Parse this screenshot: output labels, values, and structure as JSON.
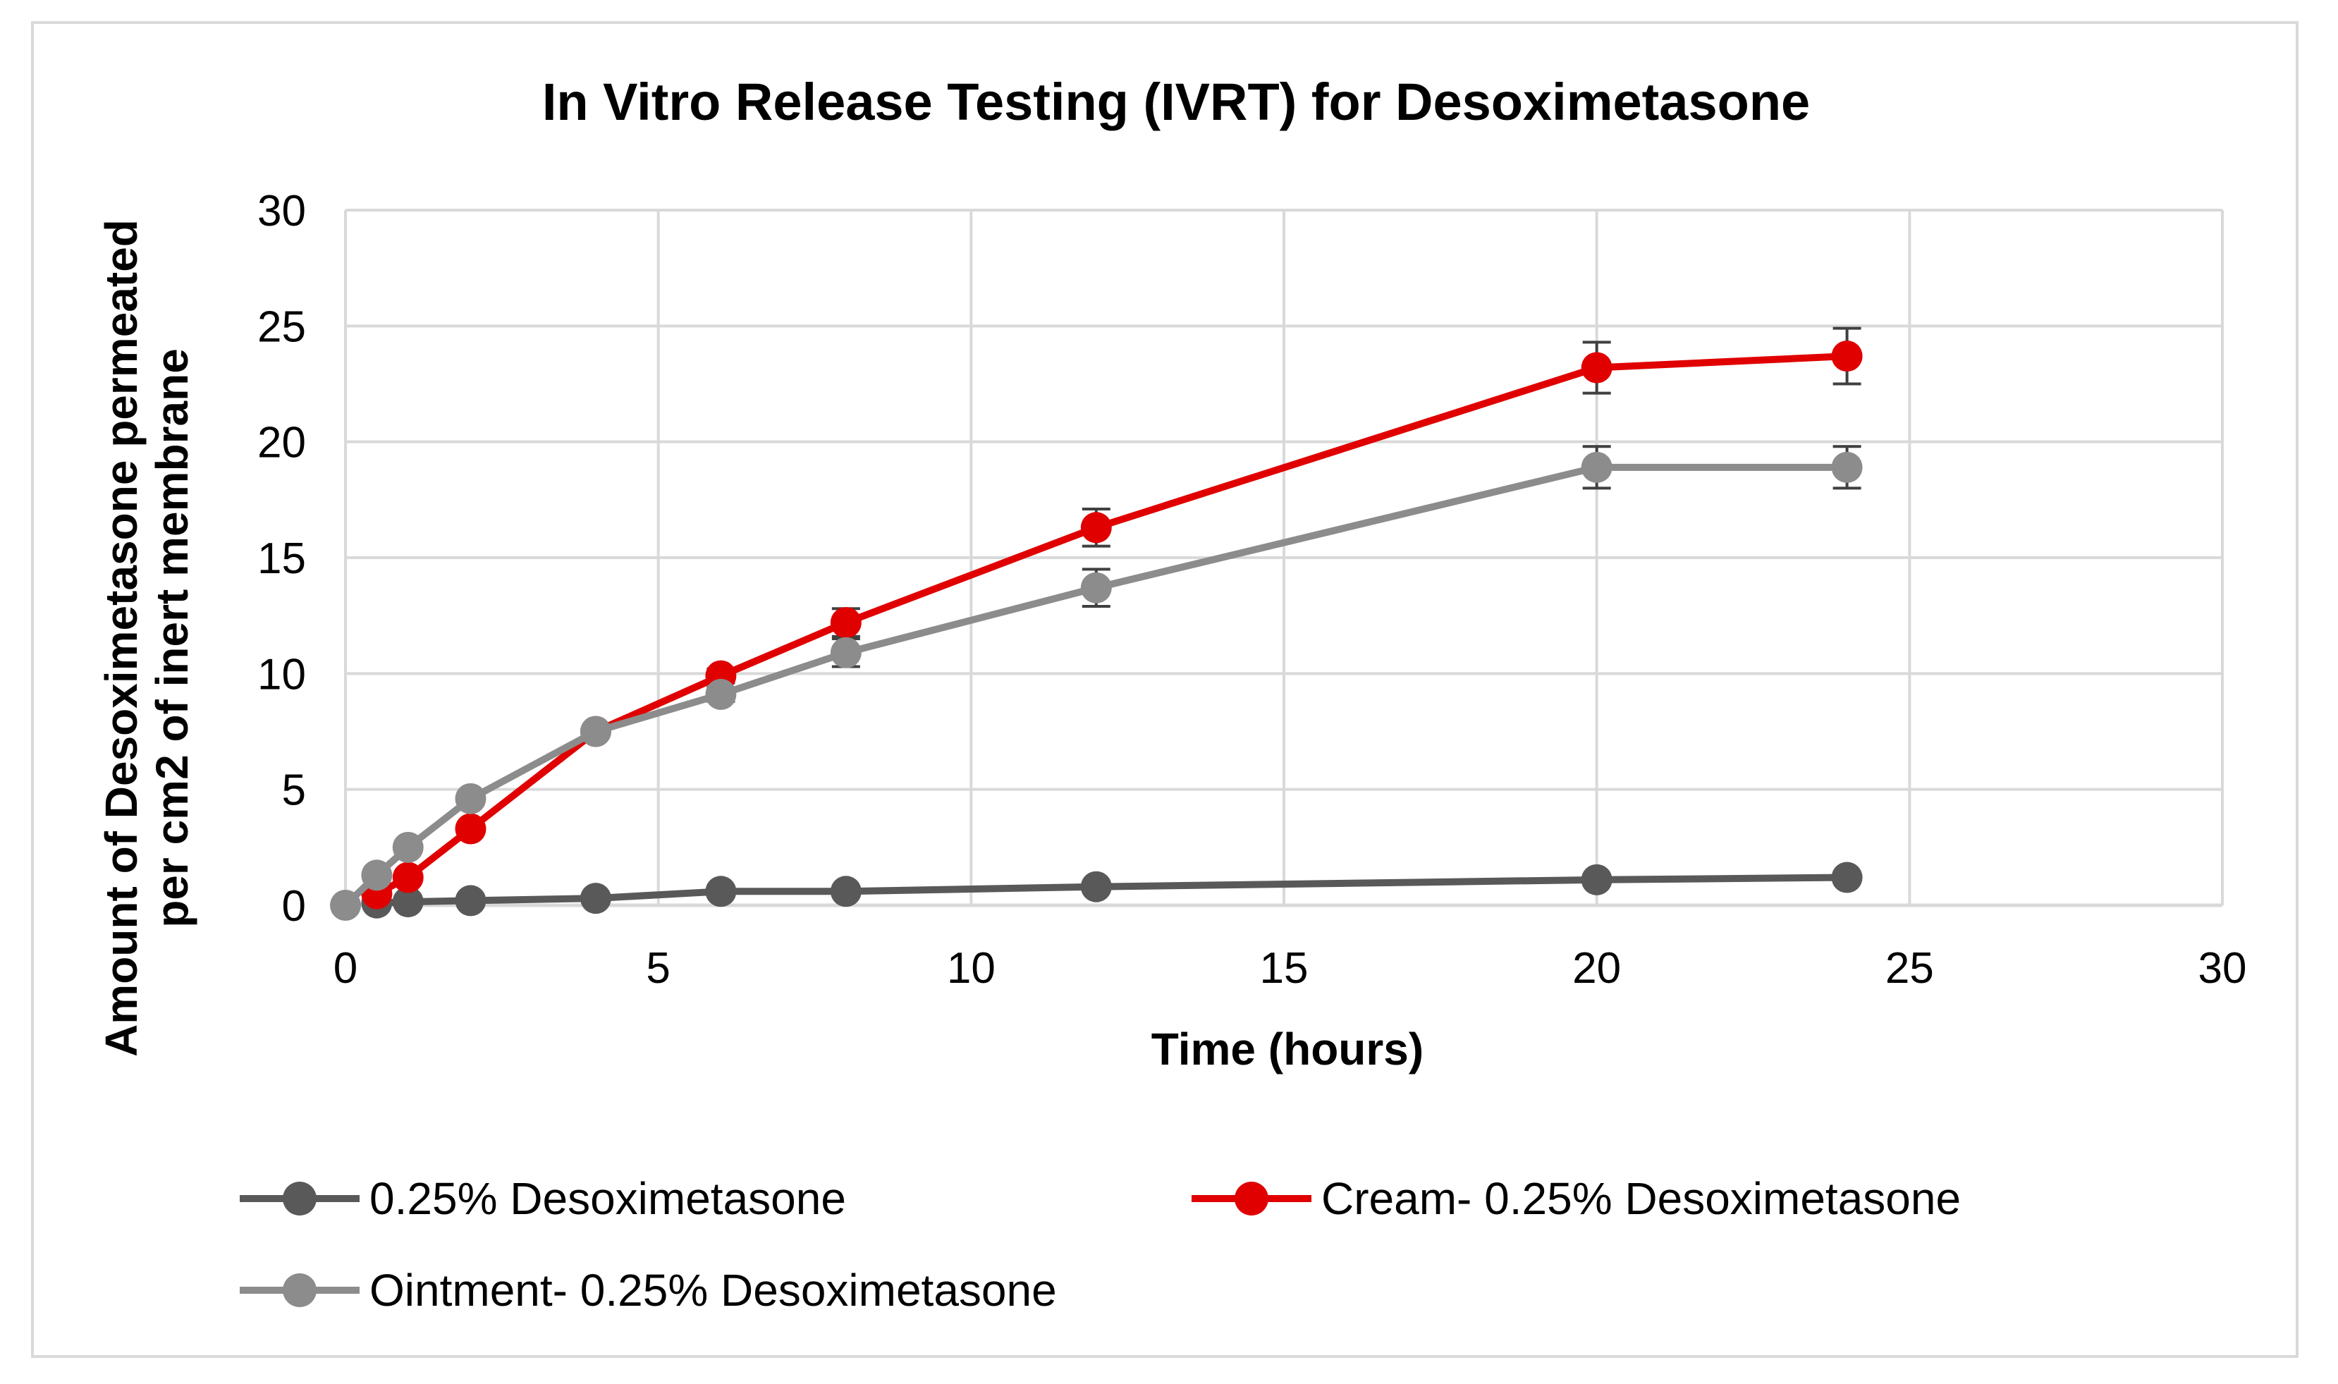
{
  "chart_data": {
    "type": "line",
    "title": "In Vitro Release Testing (IVRT) for Desoximetasone",
    "xlabel": "Time (hours)",
    "ylabel_lines": [
      "Amount of Desoximetasone permeated",
      "per cm2 of inert membrane"
    ],
    "xlim": [
      0,
      30
    ],
    "ylim": [
      0,
      30
    ],
    "xticks": [
      0,
      5,
      10,
      15,
      20,
      25,
      30
    ],
    "yticks": [
      0,
      5,
      10,
      15,
      20,
      25,
      30
    ],
    "grid": true,
    "legend_position": "bottom",
    "series": [
      {
        "name": "0.25% Desoximetasone",
        "color": "#595959",
        "x": [
          0.5,
          1,
          2,
          4,
          6,
          8,
          12,
          20,
          24
        ],
        "y": [
          0.1,
          0.15,
          0.2,
          0.3,
          0.6,
          0.6,
          0.8,
          1.1,
          1.2
        ],
        "error": [
          0,
          0,
          0,
          0,
          0,
          0,
          0,
          0,
          0
        ]
      },
      {
        "name": "Cream- 0.25% Desoximetasone",
        "color": "#e00000",
        "x": [
          0.5,
          1,
          2,
          4,
          6,
          8,
          12,
          20,
          24
        ],
        "y": [
          0.5,
          1.2,
          3.3,
          7.5,
          9.9,
          12.2,
          16.3,
          23.2,
          23.7
        ],
        "error": [
          0,
          0,
          0,
          0,
          0.3,
          0.6,
          0.8,
          1.1,
          1.2
        ]
      },
      {
        "name": "Ointment- 0.25% Desoximetasone",
        "color": "#8c8c8c",
        "x": [
          0,
          0.5,
          1,
          2,
          4,
          6,
          8,
          12,
          20,
          24
        ],
        "y": [
          0,
          1.3,
          2.5,
          4.6,
          7.5,
          9.1,
          10.9,
          13.7,
          18.9,
          18.9
        ],
        "error": [
          0,
          0,
          0,
          0,
          0,
          0.3,
          0.6,
          0.8,
          0.9,
          0.9
        ]
      }
    ]
  }
}
